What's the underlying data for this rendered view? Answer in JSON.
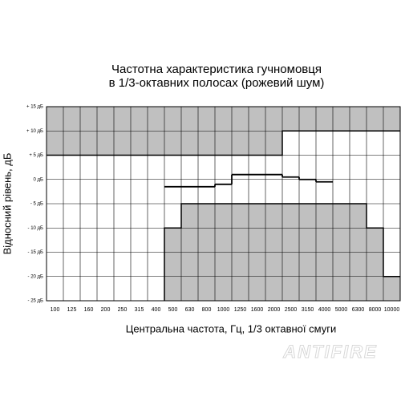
{
  "chart_data": {
    "type": "tolerance-step",
    "title": [
      "Частотна характеристика гучномовця",
      "в 1/3-октавних полосах (рожевий шум)"
    ],
    "y_label": "Відносний рівень, дБ",
    "x_label": "Центральна частота, Гц, 1/3 октавної смуги",
    "categories": [
      "100",
      "125",
      "160",
      "200",
      "250",
      "315",
      "400",
      "500",
      "630",
      "800",
      "1000",
      "1250",
      "1600",
      "2000",
      "2500",
      "3150",
      "4000",
      "5000",
      "6300",
      "8000",
      "10000"
    ],
    "upper_limit": [
      5,
      5,
      5,
      5,
      5,
      5,
      5,
      5,
      5,
      5,
      5,
      5,
      5,
      5,
      10,
      10,
      10,
      10,
      10,
      10,
      10
    ],
    "lower_limit": [
      null,
      null,
      null,
      null,
      null,
      null,
      null,
      -10,
      -5,
      -5,
      -5,
      -5,
      -5,
      -5,
      -5,
      -5,
      -5,
      -5,
      -5,
      -10,
      -20
    ],
    "values": [
      null,
      null,
      null,
      null,
      null,
      null,
      null,
      -1.5,
      -1.5,
      -1.5,
      -1,
      1,
      1,
      1,
      0.5,
      0,
      -0.5,
      null,
      null,
      null,
      null
    ],
    "fill_color": "#c0c0c0",
    "line_color": "#000000",
    "ylim": [
      -25,
      15
    ],
    "yticks": [
      {
        "value": 15,
        "label": "+ 15 дБ"
      },
      {
        "value": 10,
        "label": "+ 10 дБ"
      },
      {
        "value": 5,
        "label": "+ 5 дБ"
      },
      {
        "value": 0,
        "label": "0 дБ"
      },
      {
        "value": -5,
        "label": "- 5 дБ"
      },
      {
        "value": -10,
        "label": "- 10 дБ"
      },
      {
        "value": -15,
        "label": "- 15 дБ"
      },
      {
        "value": -20,
        "label": "- 20 дБ"
      },
      {
        "value": -25,
        "label": "- 25 дБ"
      }
    ],
    "grid": true
  },
  "watermark": "ANTIFIRE"
}
